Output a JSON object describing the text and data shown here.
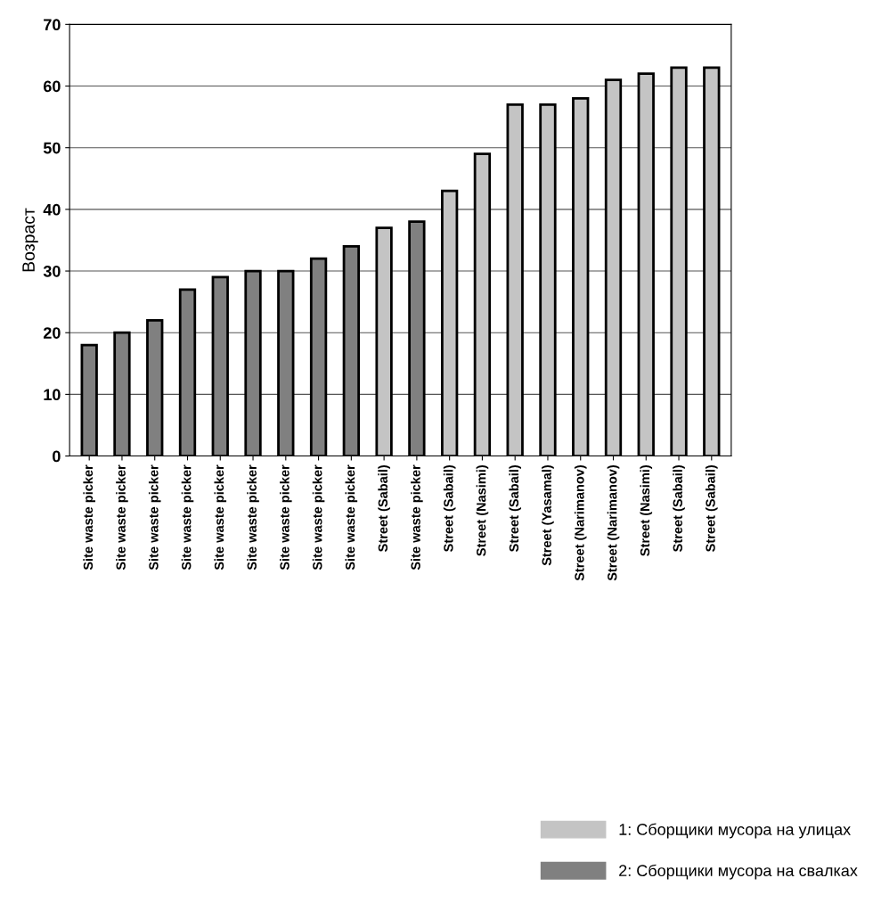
{
  "chart_data": {
    "type": "bar",
    "ylabel": "Возраст",
    "categories": [
      "Site waste picker",
      "Site waste picker",
      "Site waste picker",
      "Site waste picker",
      "Site waste picker",
      "Site waste picker",
      "Site waste picker",
      "Site waste picker",
      "Site waste picker",
      "Street (Sabail)",
      "Site waste picker",
      "Street (Sabail)",
      "Street (Nasimi)",
      "Street (Sabail)",
      "Street (Yasamal)",
      "Street (Narimanov)",
      "Street (Narimanov)",
      "Street (Nasimi)",
      "Street (Sabail)",
      "Street (Sabail)"
    ],
    "series": [
      {
        "name": "1: Сборщики мусора на улицах",
        "color": "#c4c4c4",
        "values": [
          null,
          null,
          null,
          null,
          null,
          null,
          null,
          null,
          null,
          37,
          null,
          43,
          49,
          57,
          57,
          58,
          61,
          62,
          63,
          63
        ]
      },
      {
        "name": "2: Сборщики мусора на свалках",
        "color": "#808080",
        "values": [
          18,
          20,
          22,
          27,
          29,
          30,
          30,
          32,
          34,
          null,
          38,
          null,
          null,
          null,
          null,
          null,
          null,
          null,
          null,
          null
        ]
      }
    ],
    "ylim": [
      0,
      70
    ],
    "yticks": [
      0,
      10,
      20,
      30,
      40,
      50,
      60,
      70
    ],
    "grid": "y",
    "legend": "bottom right"
  }
}
